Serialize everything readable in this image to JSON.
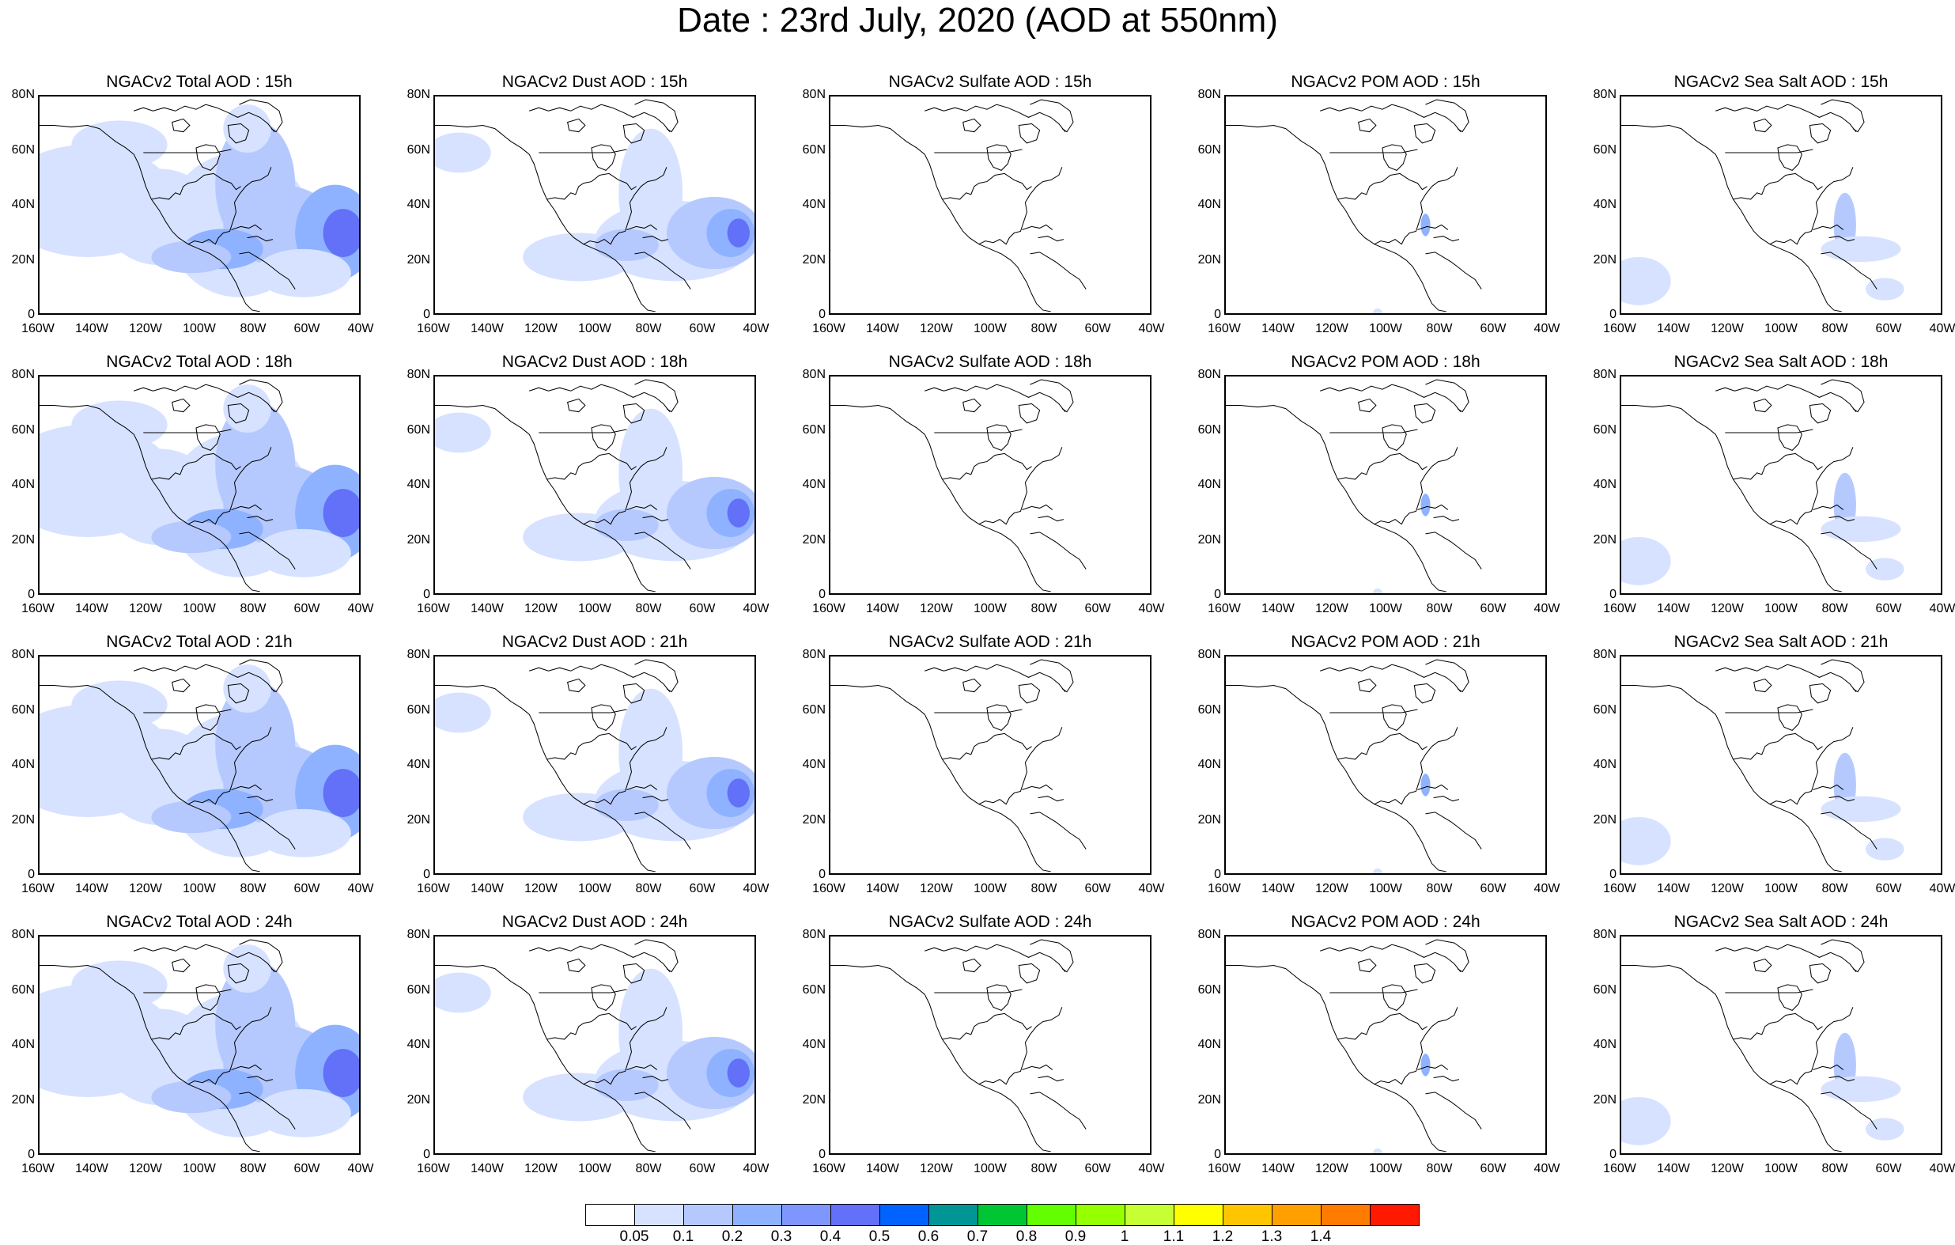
{
  "title": "Date : 23rd July, 2020 (AOD at 550nm)",
  "panels": [
    {
      "title": "NGACv2 Total AOD : 15h",
      "species": "total"
    },
    {
      "title": "NGACv2 Dust AOD : 15h",
      "species": "dust"
    },
    {
      "title": "NGACv2 Sulfate AOD : 15h",
      "species": "sulfate"
    },
    {
      "title": "NGACv2 POM AOD : 15h",
      "species": "pom"
    },
    {
      "title": "NGACv2 Sea Salt AOD : 15h",
      "species": "seasalt"
    },
    {
      "title": "NGACv2 Total AOD : 18h",
      "species": "total"
    },
    {
      "title": "NGACv2 Dust AOD : 18h",
      "species": "dust"
    },
    {
      "title": "NGACv2 Sulfate AOD : 18h",
      "species": "sulfate"
    },
    {
      "title": "NGACv2 POM AOD : 18h",
      "species": "pom"
    },
    {
      "title": "NGACv2 Sea Salt AOD : 18h",
      "species": "seasalt"
    },
    {
      "title": "NGACv2 Total AOD : 21h",
      "species": "total"
    },
    {
      "title": "NGACv2 Dust AOD : 21h",
      "species": "dust"
    },
    {
      "title": "NGACv2 Sulfate AOD : 21h",
      "species": "sulfate"
    },
    {
      "title": "NGACv2 POM AOD : 21h",
      "species": "pom"
    },
    {
      "title": "NGACv2 Sea Salt AOD : 21h",
      "species": "seasalt"
    },
    {
      "title": "NGACv2 Total AOD : 24h",
      "species": "total"
    },
    {
      "title": "NGACv2 Dust AOD : 24h",
      "species": "dust"
    },
    {
      "title": "NGACv2 Sulfate AOD : 24h",
      "species": "sulfate"
    },
    {
      "title": "NGACv2 POM AOD : 24h",
      "species": "pom"
    },
    {
      "title": "NGACv2 Sea Salt  AOD : 24h",
      "species": "seasalt"
    }
  ],
  "lat_ticks": [
    "80N",
    "60N",
    "40N",
    "20N",
    "0"
  ],
  "lon_ticks": [
    "160W",
    "140W",
    "120W",
    "100W",
    "80W",
    "60W",
    "40W"
  ],
  "colorbar": {
    "colors": [
      "#ffffff",
      "#d6e2ff",
      "#b5c9ff",
      "#8eb2ff",
      "#7f96ff",
      "#6370f8",
      "#0063ff",
      "#009696",
      "#00c633",
      "#63ff00",
      "#96ff00",
      "#c6ff33",
      "#ffff00",
      "#ffc600",
      "#ffa000",
      "#ff7c00",
      "#ff1900"
    ],
    "labels": [
      "0.05",
      "0.1",
      "0.2",
      "0.3",
      "0.4",
      "0.5",
      "0.6",
      "0.7",
      "0.8",
      "0.9",
      "1",
      "1.1",
      "1.2",
      "1.3",
      "1.4"
    ]
  }
}
